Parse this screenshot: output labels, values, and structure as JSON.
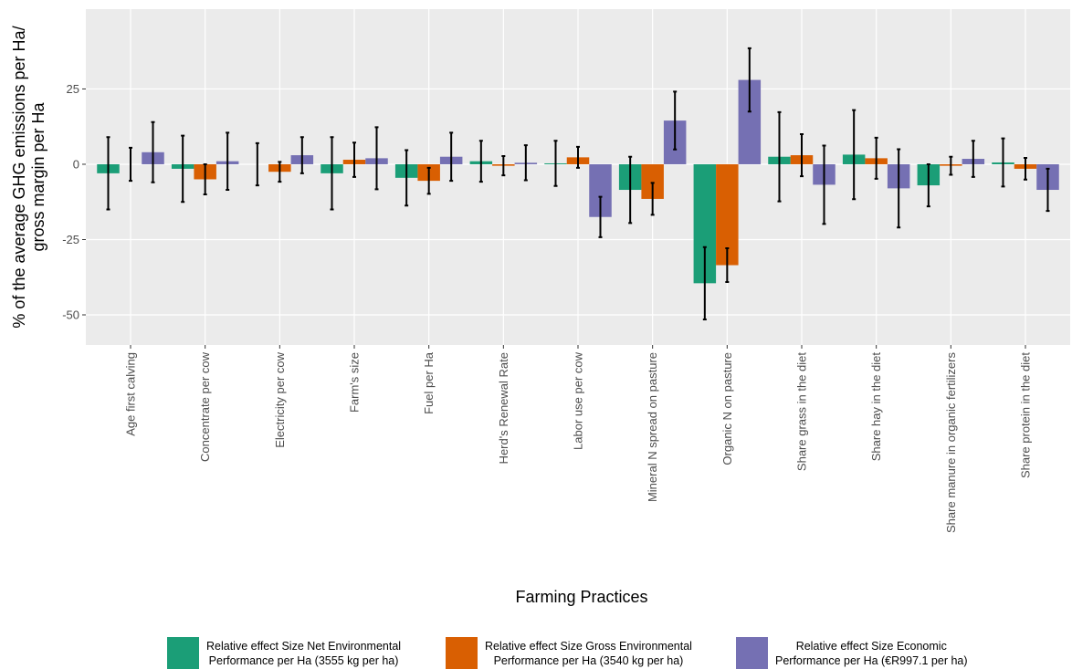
{
  "chart_data": {
    "type": "bar",
    "xlabel": "Farming Practices",
    "ylabel": [
      "% of the average GHG emissions per Ha/",
      "gross margin per Ha"
    ],
    "categories": [
      "Age first calving",
      "Concentrate per cow",
      "Electricity per cow",
      "Farm's size",
      "Fuel per Ha",
      "Herd's Renewal Rate",
      "Labor use per cow",
      "Mineral N spread on pasture",
      "Organic N on pasture",
      "Share grass in the diet",
      "Share hay in the diet",
      "Share manure in organic fertilizers",
      "Share protein in the diet"
    ],
    "series": [
      {
        "name": "Relative effect Size Net Environmental\nPerformance per Ha (3555 kg per ha)",
        "color": "#1b9e77",
        "values": [
          -3,
          -1.5,
          0,
          -3,
          -4.5,
          1,
          0.3,
          -8.5,
          -39.5,
          2.5,
          3.2,
          -7,
          0.6
        ],
        "errors": [
          12,
          11,
          7,
          12,
          9.2,
          6.8,
          7.5,
          11,
          12,
          14.8,
          14.8,
          7,
          8
        ]
      },
      {
        "name": "Relative effect Size Gross Environmental\nPerformance per Ha (3540 kg per ha)",
        "color": "#d95f02",
        "values": [
          0,
          -5,
          -2.5,
          1.5,
          -5.5,
          -0.5,
          2.3,
          -11.5,
          -33.5,
          3,
          2,
          -0.5,
          -1.5
        ],
        "errors": [
          5.5,
          5,
          3.3,
          5.7,
          4.3,
          3.2,
          3.5,
          5.3,
          5.6,
          7,
          6.8,
          3,
          3.6
        ]
      },
      {
        "name": "Relative effect Size Economic\nPerformance per Ha (€R997.1 per ha)",
        "color": "#7570b3",
        "values": [
          4,
          1,
          3,
          2,
          2.5,
          0.5,
          -17.5,
          14.5,
          28,
          -6.8,
          -8,
          1.8,
          -8.5
        ],
        "errors": [
          10,
          9.5,
          6,
          10.3,
          8,
          5.8,
          6.7,
          9.6,
          10.5,
          13,
          13,
          6,
          7
        ]
      }
    ],
    "ylim": [
      -60,
      51.5
    ],
    "yticks": [
      -50,
      -25,
      0,
      25
    ],
    "grid": true,
    "legend": "bottom"
  }
}
